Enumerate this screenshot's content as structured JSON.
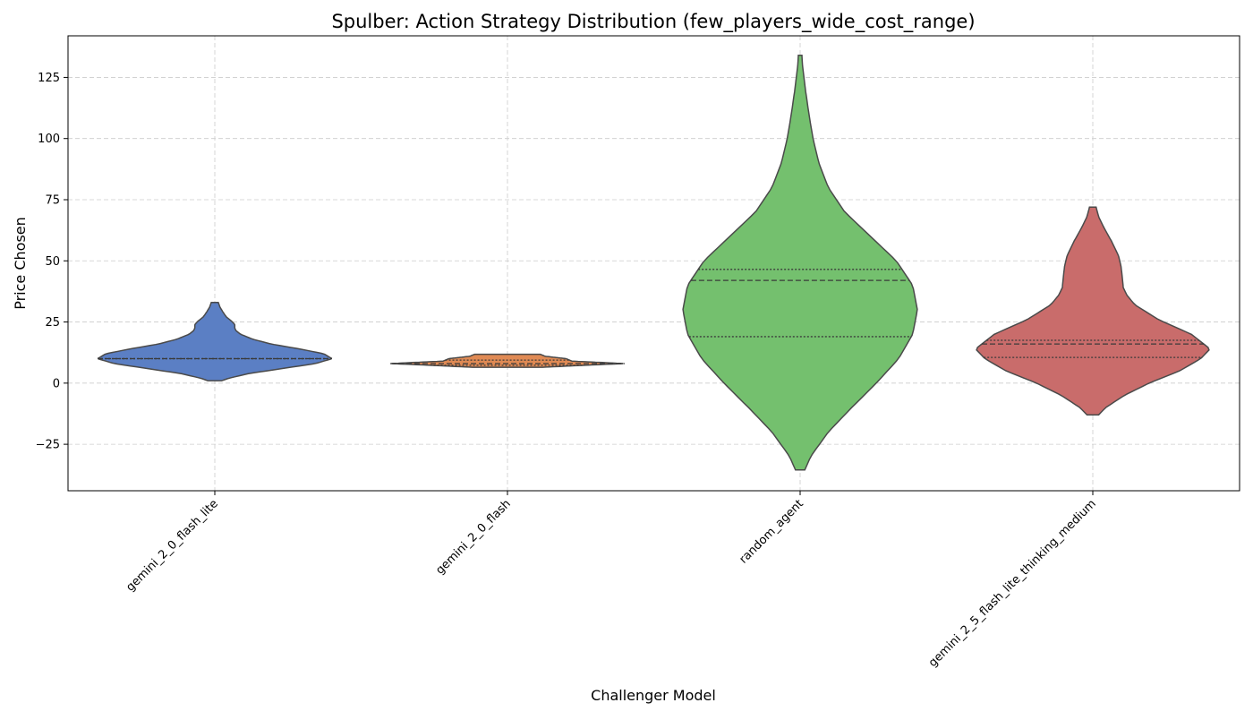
{
  "chart_data": {
    "type": "violin",
    "title": "Spulber: Action Strategy Distribution (few_players_wide_cost_range)",
    "xlabel": "Challenger Model",
    "ylabel": "Price Chosen",
    "ylim": [
      -44,
      142
    ],
    "yticks": [
      -25,
      0,
      25,
      50,
      75,
      100,
      125
    ],
    "ytick_labels": [
      "−25",
      "0",
      "25",
      "50",
      "75",
      "100",
      "125"
    ],
    "grid": true,
    "categories": [
      "gemini_2_0_flash_lite",
      "gemini_2_0_flash",
      "random_agent",
      "gemini_2_5_flash_lite_thinking_medium"
    ],
    "series": [
      {
        "category": "gemini_2_0_flash_lite",
        "color": "#5b7fc4",
        "quartiles": [
          10,
          10,
          10
        ],
        "density_profile": [
          [
            1,
            0.06
          ],
          [
            2,
            0.12
          ],
          [
            4,
            0.3
          ],
          [
            6,
            0.58
          ],
          [
            8,
            0.86
          ],
          [
            10,
            1.0
          ],
          [
            12,
            0.93
          ],
          [
            14,
            0.72
          ],
          [
            16,
            0.48
          ],
          [
            18,
            0.32
          ],
          [
            20,
            0.22
          ],
          [
            21.5,
            0.18
          ],
          [
            22.5,
            0.17
          ],
          [
            24,
            0.17
          ],
          [
            25.5,
            0.14
          ],
          [
            27,
            0.1
          ],
          [
            29,
            0.07
          ],
          [
            31,
            0.045
          ],
          [
            33,
            0.03
          ]
        ]
      },
      {
        "category": "gemini_2_0_flash",
        "color": "#e08a54",
        "quartiles": [
          7.3,
          8.0,
          9.4
        ],
        "density_profile": [
          [
            6.5,
            0.3
          ],
          [
            7.5,
            0.75
          ],
          [
            8,
            1.0
          ],
          [
            9,
            0.55
          ],
          [
            10,
            0.5
          ],
          [
            11,
            0.32
          ],
          [
            11.8,
            0.28
          ]
        ]
      },
      {
        "category": "random_agent",
        "color": "#74c06e",
        "quartiles": [
          19,
          42,
          46.5
        ],
        "density_profile": [
          [
            -35.5,
            0.04
          ],
          [
            -30,
            0.09
          ],
          [
            -20,
            0.24
          ],
          [
            -10,
            0.44
          ],
          [
            0,
            0.65
          ],
          [
            10,
            0.84
          ],
          [
            20,
            0.96
          ],
          [
            30,
            1.0
          ],
          [
            40,
            0.96
          ],
          [
            50,
            0.82
          ],
          [
            60,
            0.6
          ],
          [
            70,
            0.38
          ],
          [
            80,
            0.24
          ],
          [
            90,
            0.16
          ],
          [
            100,
            0.11
          ],
          [
            110,
            0.075
          ],
          [
            120,
            0.045
          ],
          [
            130,
            0.02
          ],
          [
            134,
            0.015
          ]
        ]
      },
      {
        "category": "gemini_2_5_flash_lite_thinking_medium",
        "color": "#c96c6b",
        "quartiles": [
          10.5,
          16,
          17.5
        ],
        "density_profile": [
          [
            -13,
            0.05
          ],
          [
            -10,
            0.11
          ],
          [
            -5,
            0.27
          ],
          [
            0,
            0.48
          ],
          [
            5,
            0.74
          ],
          [
            10,
            0.92
          ],
          [
            14,
            1.0
          ],
          [
            20,
            0.84
          ],
          [
            26,
            0.56
          ],
          [
            32,
            0.36
          ],
          [
            36,
            0.29
          ],
          [
            39,
            0.26
          ],
          [
            44,
            0.25
          ],
          [
            48,
            0.24
          ],
          [
            52,
            0.22
          ],
          [
            58,
            0.16
          ],
          [
            64,
            0.09
          ],
          [
            68,
            0.05
          ],
          [
            72,
            0.028
          ]
        ]
      }
    ]
  }
}
